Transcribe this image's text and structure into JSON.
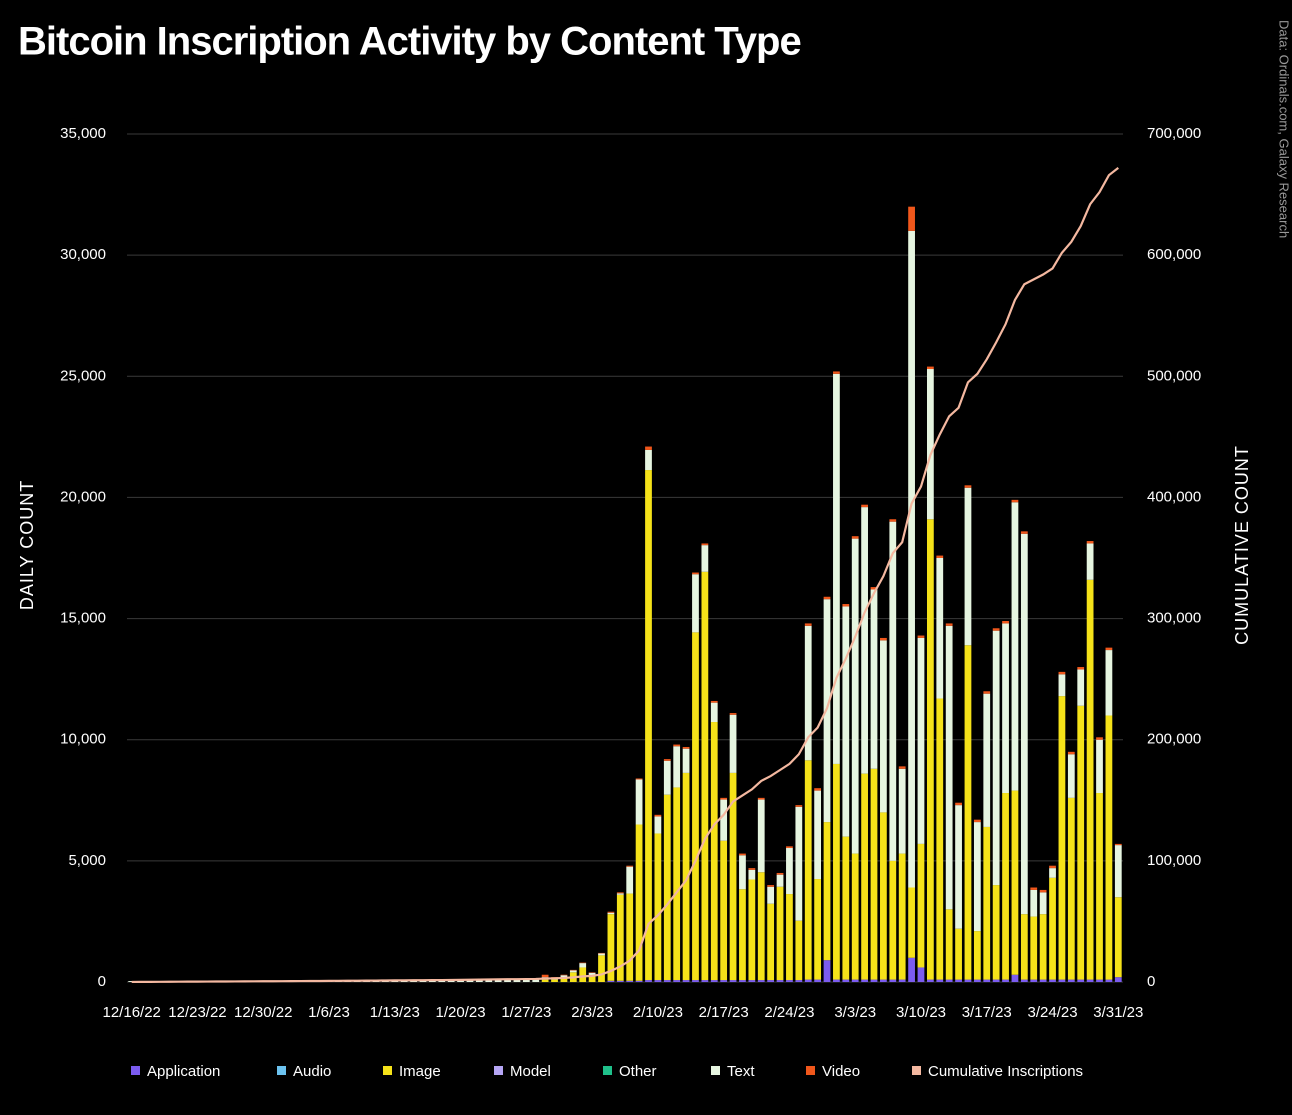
{
  "chart_data": {
    "type": "bar",
    "stacked": true,
    "title": "Bitcoin Inscription Activity by Content Type",
    "source": "Data: Ordinals.com, Galaxy Research",
    "y_label": "DAILY COUNT",
    "y2_label": "CUMULATIVE COUNT",
    "categories": [
      "12/16/22",
      null,
      null,
      null,
      null,
      null,
      null,
      "12/23/22",
      null,
      null,
      null,
      null,
      null,
      null,
      "12/30/22",
      null,
      null,
      null,
      null,
      null,
      null,
      "1/6/23",
      null,
      null,
      null,
      null,
      null,
      null,
      "1/13/23",
      null,
      null,
      null,
      null,
      null,
      null,
      "1/20/23",
      null,
      null,
      null,
      null,
      null,
      null,
      "1/27/23",
      null,
      null,
      null,
      null,
      null,
      null,
      "2/3/23",
      null,
      null,
      null,
      null,
      null,
      null,
      "2/10/23",
      null,
      null,
      null,
      null,
      null,
      null,
      "2/17/23",
      null,
      null,
      null,
      null,
      null,
      null,
      "2/24/23",
      null,
      null,
      null,
      null,
      null,
      null,
      "3/3/23",
      null,
      null,
      null,
      null,
      null,
      null,
      "3/10/23",
      null,
      null,
      null,
      null,
      null,
      null,
      "3/17/23",
      null,
      null,
      null,
      null,
      null,
      null,
      "3/24/23",
      null,
      null,
      null,
      null,
      null,
      null,
      "3/31/23"
    ],
    "series": [
      {
        "name": "Application",
        "color": "#7b5cf0",
        "values": [
          0,
          0,
          0,
          0,
          0,
          0,
          0,
          0,
          0,
          0,
          0,
          0,
          0,
          0,
          0,
          0,
          0,
          0,
          0,
          0,
          0,
          0,
          0,
          0,
          0,
          0,
          0,
          0,
          0,
          0,
          0,
          0,
          0,
          0,
          0,
          0,
          0,
          0,
          0,
          0,
          0,
          0,
          0,
          0,
          0,
          0,
          0,
          0,
          0,
          0,
          0,
          50,
          50,
          50,
          50,
          80,
          80,
          80,
          80,
          80,
          80,
          80,
          80,
          80,
          80,
          80,
          80,
          80,
          80,
          80,
          80,
          80,
          100,
          100,
          900,
          100,
          100,
          100,
          100,
          100,
          100,
          100,
          100,
          1000,
          600,
          100,
          100,
          100,
          100,
          100,
          100,
          100,
          100,
          100,
          300,
          100,
          100,
          100,
          100,
          100,
          100,
          100,
          100,
          100,
          100,
          200
        ]
      },
      {
        "name": "Audio",
        "color": "#6cc3f0",
        "values": [
          0,
          0,
          0,
          0,
          0,
          0,
          0,
          0,
          0,
          0,
          0,
          0,
          0,
          0,
          0,
          0,
          0,
          0,
          0,
          0,
          0,
          0,
          0,
          0,
          0,
          0,
          0,
          0,
          0,
          0,
          0,
          0,
          0,
          0,
          0,
          0,
          0,
          0,
          0,
          0,
          0,
          0,
          0,
          0,
          0,
          0,
          0,
          0,
          0,
          0,
          0,
          0,
          0,
          0,
          0,
          0,
          0,
          0,
          0,
          0,
          0,
          0,
          0,
          0,
          0,
          0,
          0,
          0,
          0,
          0,
          0,
          0,
          0,
          0,
          0,
          0,
          0,
          0,
          0,
          0,
          0,
          0,
          0,
          0,
          0,
          0,
          0,
          0,
          0,
          0,
          0,
          0,
          0,
          0,
          0,
          0,
          0,
          0,
          0,
          0,
          0,
          0,
          0,
          0,
          0,
          0
        ]
      },
      {
        "name": "Image",
        "color": "#f5e219",
        "values": [
          0,
          0,
          0,
          0,
          0,
          0,
          0,
          0,
          0,
          0,
          0,
          0,
          0,
          0,
          0,
          0,
          0,
          0,
          0,
          0,
          0,
          0,
          0,
          0,
          0,
          0,
          0,
          0,
          0,
          0,
          0,
          0,
          0,
          0,
          0,
          0,
          0,
          0,
          0,
          0,
          0,
          0,
          0,
          0,
          100,
          100,
          150,
          400,
          600,
          250,
          1100,
          2750,
          3550,
          3600,
          6450,
          21050,
          6050,
          7650,
          7950,
          8550,
          14350,
          16850,
          10650,
          5750,
          8550,
          3750,
          4150,
          4450,
          3150,
          3850,
          3550,
          2450,
          9050,
          4150,
          5700,
          8900,
          5900,
          5200,
          8500,
          8700,
          6900,
          4900,
          5200,
          2900,
          5100,
          19000,
          11600,
          2900,
          2100,
          13800,
          2000,
          6300,
          3900,
          7700,
          7600,
          2700,
          2600,
          2700,
          4200,
          11700,
          7500,
          11300,
          16500,
          7700,
          10900,
          3300
        ]
      },
      {
        "name": "Model",
        "color": "#b6a6f5",
        "values": [
          0,
          0,
          0,
          0,
          0,
          0,
          0,
          0,
          0,
          0,
          0,
          0,
          0,
          0,
          0,
          0,
          0,
          0,
          0,
          0,
          0,
          0,
          0,
          0,
          0,
          0,
          0,
          0,
          0,
          0,
          0,
          0,
          0,
          0,
          0,
          0,
          0,
          0,
          0,
          0,
          0,
          0,
          0,
          0,
          0,
          0,
          0,
          0,
          0,
          0,
          0,
          0,
          0,
          0,
          0,
          0,
          0,
          0,
          0,
          0,
          0,
          0,
          0,
          0,
          0,
          0,
          0,
          0,
          0,
          0,
          0,
          0,
          0,
          0,
          0,
          0,
          0,
          0,
          0,
          0,
          0,
          0,
          0,
          0,
          0,
          0,
          0,
          0,
          0,
          0,
          0,
          0,
          0,
          0,
          0,
          0,
          0,
          0,
          0,
          0,
          0,
          0,
          0,
          0,
          0,
          0
        ]
      },
      {
        "name": "Other",
        "color": "#1fc08a",
        "values": [
          0,
          0,
          0,
          0,
          0,
          0,
          0,
          0,
          0,
          0,
          0,
          0,
          0,
          0,
          0,
          0,
          0,
          0,
          0,
          0,
          0,
          0,
          0,
          0,
          0,
          0,
          0,
          0,
          0,
          0,
          0,
          0,
          0,
          0,
          0,
          0,
          0,
          0,
          0,
          0,
          0,
          0,
          0,
          0,
          0,
          0,
          0,
          0,
          0,
          0,
          0,
          0,
          0,
          0,
          0,
          0,
          0,
          0,
          0,
          0,
          0,
          0,
          0,
          0,
          0,
          0,
          0,
          0,
          0,
          0,
          0,
          0,
          0,
          0,
          0,
          0,
          0,
          0,
          0,
          0,
          0,
          0,
          0,
          0,
          0,
          0,
          0,
          0,
          0,
          0,
          0,
          0,
          0,
          0,
          0,
          0,
          0,
          0,
          0,
          0,
          0,
          0,
          0,
          0,
          0,
          0
        ]
      },
      {
        "name": "Text",
        "color": "#e6f5e0",
        "values": [
          40,
          40,
          40,
          40,
          40,
          40,
          40,
          40,
          40,
          40,
          40,
          40,
          40,
          40,
          40,
          40,
          40,
          40,
          40,
          40,
          40,
          60,
          60,
          60,
          60,
          60,
          60,
          60,
          60,
          60,
          60,
          60,
          60,
          60,
          60,
          60,
          100,
          100,
          100,
          100,
          100,
          100,
          100,
          100,
          100,
          80,
          130,
          80,
          180,
          130,
          80,
          60,
          60,
          1110,
          1860,
          830,
          700,
          1400,
          1700,
          1000,
          2400,
          1100,
          800,
          1700,
          2400,
          1400,
          400,
          3000,
          700,
          500,
          1900,
          4700,
          5550,
          3650,
          9200,
          16100,
          9500,
          13000,
          11000,
          7400,
          7100,
          14000,
          3500,
          27100,
          8500,
          6200,
          5800,
          11700,
          5100,
          6500,
          4500,
          5500,
          10500,
          7000,
          11900,
          15700,
          1100,
          900,
          400,
          900,
          1800,
          1500,
          1500,
          2200,
          2700,
          2150
        ]
      },
      {
        "name": "Video",
        "color": "#f0571b",
        "values": [
          0,
          0,
          0,
          0,
          0,
          0,
          0,
          0,
          0,
          0,
          0,
          0,
          0,
          0,
          0,
          0,
          0,
          0,
          0,
          0,
          0,
          0,
          0,
          0,
          0,
          0,
          0,
          0,
          0,
          0,
          0,
          0,
          0,
          0,
          0,
          0,
          0,
          0,
          0,
          0,
          0,
          0,
          0,
          0,
          100,
          20,
          20,
          20,
          20,
          20,
          20,
          40,
          40,
          40,
          40,
          140,
          70,
          70,
          70,
          70,
          70,
          70,
          70,
          70,
          70,
          70,
          70,
          70,
          70,
          70,
          70,
          70,
          100,
          100,
          100,
          100,
          100,
          100,
          100,
          100,
          100,
          100,
          100,
          1000,
          100,
          100,
          100,
          100,
          100,
          100,
          100,
          100,
          100,
          100,
          100,
          100,
          100,
          100,
          100,
          100,
          100,
          100,
          100,
          100,
          100,
          50
        ]
      },
      {
        "name": "Cumulative Inscriptions",
        "color": "#f4b8a0",
        "type": "line",
        "axis": "y2",
        "values": [
          40,
          80,
          120,
          160,
          200,
          240,
          280,
          320,
          360,
          400,
          440,
          480,
          520,
          560,
          600,
          640,
          680,
          720,
          760,
          800,
          840,
          900,
          960,
          1020,
          1080,
          1140,
          1200,
          1260,
          1320,
          1380,
          1440,
          1500,
          1560,
          1620,
          1680,
          1740,
          1840,
          1940,
          2040,
          2140,
          2240,
          2340,
          2440,
          2540,
          2840,
          3040,
          3340,
          3840,
          4640,
          5040,
          6240,
          9140,
          12840,
          17640,
          26040,
          48000,
          55000,
          64000,
          74000,
          84000,
          100000,
          118000,
          130000,
          138000,
          149000,
          154000,
          159000,
          166000,
          170000,
          175000,
          180000,
          188000,
          202000,
          210000,
          226000,
          251000,
          267000,
          285000,
          305000,
          321000,
          335000,
          354000,
          363000,
          395000,
          409000,
          435000,
          452000,
          467000,
          474000,
          495000,
          502000,
          514000,
          528000,
          543000,
          563000,
          576000,
          580000,
          584000,
          589000,
          602000,
          611000,
          624000,
          642000,
          652000,
          666000,
          672000
        ]
      }
    ],
    "ylim": [
      0,
      35000
    ],
    "yticks": [
      0,
      {
        "value": 5000,
        "label": "5,000"
      },
      {
        "value": 10000,
        "label": "10,000"
      },
      {
        "value": 15000,
        "label": "15,000"
      },
      {
        "value": 20000,
        "label": "20,000"
      },
      {
        "value": 25000,
        "label": "25,000"
      },
      {
        "value": 30000,
        "label": "30,000"
      },
      {
        "value": 35000,
        "label": "35,000"
      }
    ],
    "y2lim": [
      0,
      700000
    ],
    "y2ticks": [
      0,
      {
        "value": 100000,
        "label": "100,000"
      },
      {
        "value": 200000,
        "label": "200,000"
      },
      {
        "value": 300000,
        "label": "300,000"
      },
      {
        "value": 400000,
        "label": "400,000"
      },
      {
        "value": 500000,
        "label": "500,000"
      },
      {
        "value": 600000,
        "label": "600,000"
      },
      {
        "value": 700000,
        "label": "700,000"
      }
    ],
    "grid": true
  }
}
